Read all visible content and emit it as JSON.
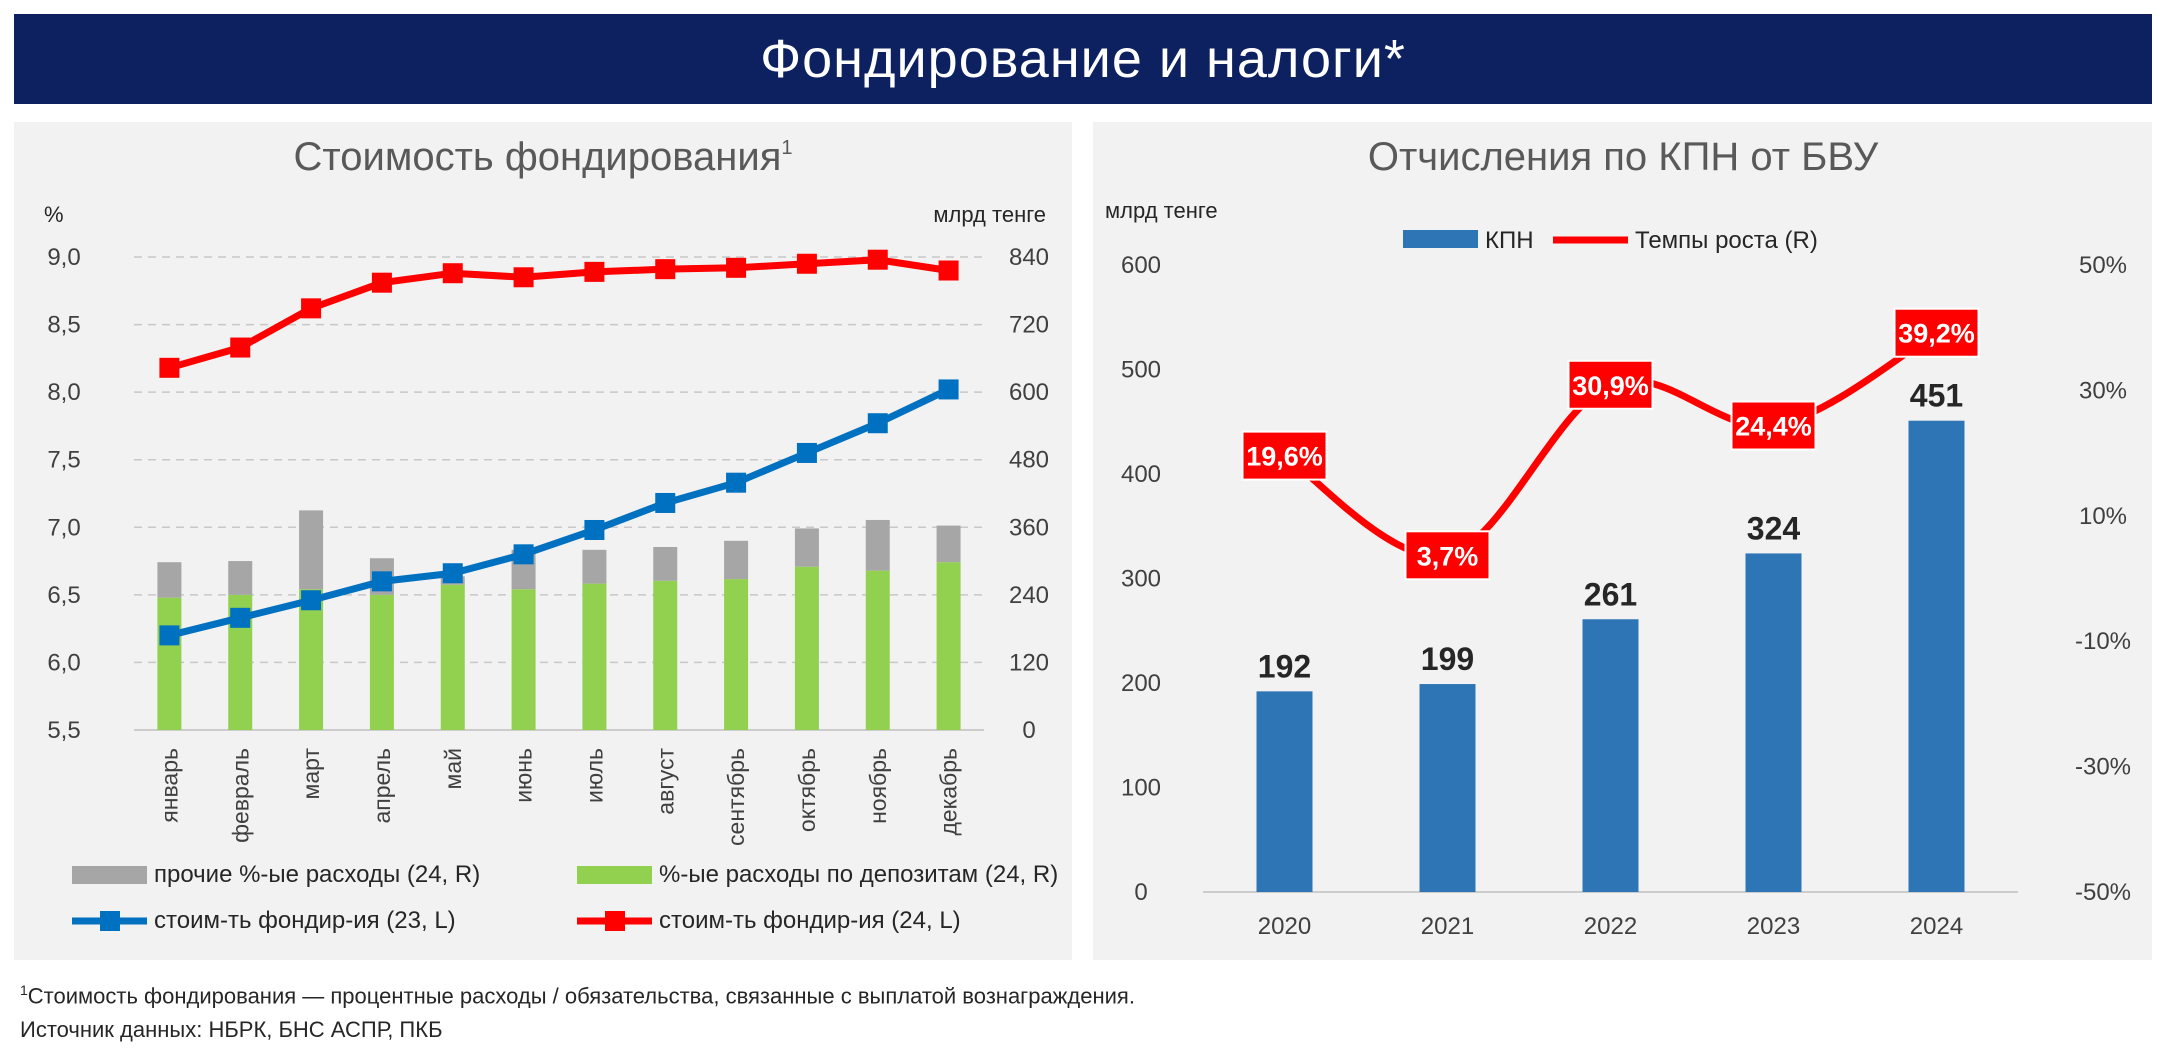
{
  "banner": {
    "title": "Фондирование и налоги*"
  },
  "chart_data": [
    {
      "type": "bar+line",
      "title": "Стоимость фондирования",
      "title_sup": "1",
      "left_axis_label": "%",
      "right_axis_label": "млрд тенге",
      "categories": [
        "январь",
        "февраль",
        "март",
        "апрель",
        "май",
        "июнь",
        "июль",
        "август",
        "сентябрь",
        "октябрь",
        "ноябрь",
        "декабрь"
      ],
      "y_left": {
        "min": 5.5,
        "max": 9.0,
        "ticks": [
          "5,5",
          "6,0",
          "6,5",
          "7,0",
          "7,5",
          "8,0",
          "8,5",
          "9,0"
        ],
        "tick_values": [
          5.5,
          6.0,
          6.5,
          7.0,
          7.5,
          8.0,
          8.5,
          9.0
        ]
      },
      "y_right": {
        "min": 0,
        "max": 840,
        "ticks": [
          "0",
          "120",
          "240",
          "360",
          "480",
          "600",
          "720",
          "840"
        ],
        "tick_values": [
          0,
          120,
          240,
          360,
          480,
          600,
          720,
          840
        ]
      },
      "grid": "dashed horizontal",
      "series": [
        {
          "name": "прочие %-ые расходы (24, R)",
          "axis": "right",
          "kind": "bar-stack-top",
          "color": "#a6a6a6",
          "values": [
            63,
            60,
            140,
            65,
            15,
            70,
            60,
            60,
            68,
            68,
            90,
            65
          ]
        },
        {
          "name": "%-ые расходы по депозитам (24, R)",
          "axis": "right",
          "kind": "bar-stack-base",
          "color": "#92d050",
          "values": [
            235,
            240,
            250,
            240,
            258,
            250,
            260,
            265,
            268,
            290,
            283,
            298
          ]
        },
        {
          "name": "стоим-ть фондир-ия (23, L)",
          "axis": "left",
          "kind": "line",
          "color": "#0070c0",
          "values": [
            6.2,
            6.33,
            6.46,
            6.6,
            6.66,
            6.8,
            6.98,
            7.18,
            7.33,
            7.55,
            7.77,
            8.02
          ]
        },
        {
          "name": "стоим-ть фондир-ия (24, L)",
          "axis": "left",
          "kind": "line",
          "color": "#ff0000",
          "values": [
            8.18,
            8.33,
            8.62,
            8.81,
            8.88,
            8.85,
            8.89,
            8.91,
            8.92,
            8.95,
            8.98,
            8.9
          ]
        }
      ],
      "legend_placement": "bottom"
    },
    {
      "type": "bar+line",
      "title": "Отчисления по КПН от БВУ",
      "left_axis_label": "млрд тенге",
      "categories": [
        "2020",
        "2021",
        "2022",
        "2023",
        "2024"
      ],
      "y_left": {
        "min": 0,
        "max": 600,
        "ticks": [
          "0",
          "100",
          "200",
          "300",
          "400",
          "500",
          "600"
        ],
        "tick_values": [
          0,
          100,
          200,
          300,
          400,
          500,
          600
        ]
      },
      "y_right": {
        "min": -50,
        "max": 50,
        "ticks": [
          "-50%",
          "-30%",
          "-10%",
          "10%",
          "30%",
          "50%"
        ],
        "tick_values": [
          -50,
          -30,
          -10,
          10,
          30,
          50
        ]
      },
      "series": [
        {
          "name": "КПН",
          "axis": "left",
          "kind": "bar",
          "color": "#2e75b6",
          "values": [
            192,
            199,
            261,
            324,
            451
          ],
          "labels": [
            "192",
            "199",
            "261",
            "324",
            "451"
          ]
        },
        {
          "name": "Темпы роста (R)",
          "axis": "right",
          "kind": "smooth-line",
          "color": "#ff0000",
          "values": [
            19.6,
            3.7,
            30.9,
            24.4,
            39.2
          ],
          "labels": [
            "19,6%",
            "3,7%",
            "30,9%",
            "24,4%",
            "39,2%"
          ]
        }
      ],
      "legend_placement": "top"
    }
  ],
  "footnote": {
    "sup": "1",
    "text": "Стоимость фондирования — процентные расходы / обязательства, связанные с выплатой вознаграждения.",
    "source": "Источник данных: НБРК, БНС АСПР, ПКБ"
  }
}
